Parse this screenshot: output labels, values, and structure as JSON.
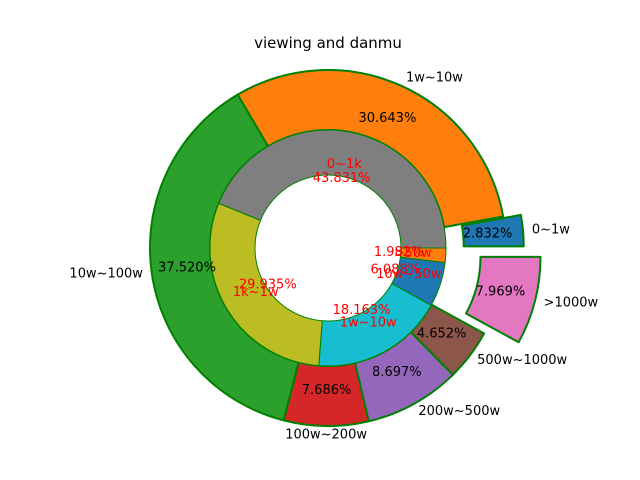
{
  "chart_data": {
    "type": "pie",
    "title": "viewing and danmu",
    "edge_color": "#008000",
    "outer": {
      "slices": [
        {
          "label": "0~1w",
          "value": 2.832,
          "pct_text": "2.832%",
          "color": "#1f77b4",
          "explode": 0.1
        },
        {
          "label": "1w~10w",
          "value": 30.643,
          "pct_text": "30.643%",
          "color": "#ff7f0e",
          "explode": 0
        },
        {
          "label": "10w~100w",
          "value": 37.52,
          "pct_text": "37.520%",
          "color": "#2ca02c",
          "explode": 0
        },
        {
          "label": "100w~200w",
          "value": 7.686,
          "pct_text": "7.686%",
          "color": "#d62728",
          "explode": 0
        },
        {
          "label": "200w~500w",
          "value": 8.697,
          "pct_text": "8.697%",
          "color": "#9467bd",
          "explode": 0
        },
        {
          "label": "500w~1000w",
          "value": 4.652,
          "pct_text": "4.652%",
          "color": "#8c564b",
          "explode": 0
        },
        {
          "label": ">1000w",
          "value": 7.969,
          "pct_text": "7.969%",
          "color": "#e377c2",
          "explode": 0.2
        }
      ]
    },
    "inner": {
      "slices": [
        {
          "label": "0~1k",
          "value": 43.831,
          "pct_text": "43.831%",
          "color": "#7f7f7f"
        },
        {
          "label": "1k~1w",
          "value": 29.935,
          "pct_text": "29.935%",
          "color": "#bcbd22"
        },
        {
          "label": "1w~10w",
          "value": 18.163,
          "pct_text": "18.163%",
          "color": "#17becf"
        },
        {
          "label": "10w~50w",
          "value": 6.088,
          "pct_text": "6.088%",
          "color": "#1f77b4"
        },
        {
          "label": ">50w",
          "value": 1.982,
          "pct_text": "1.982%",
          "color": "#ff7f0e"
        }
      ]
    }
  }
}
